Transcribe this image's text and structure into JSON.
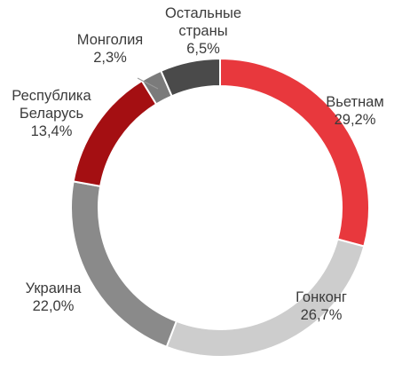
{
  "chart_data": {
    "type": "pie",
    "style": "donut",
    "start_angle_deg": 0,
    "direction": "clockwise",
    "slices": [
      {
        "label_lines": [
          "Вьетнам"
        ],
        "value": 29.2,
        "value_text": "29,2%",
        "color": "#e8383d",
        "label_side": "right"
      },
      {
        "label_lines": [
          "Гонконг"
        ],
        "value": 26.7,
        "value_text": "26,7%",
        "color": "#cdcdcd",
        "label_side": "center"
      },
      {
        "label_lines": [
          "Украина"
        ],
        "value": 22.0,
        "value_text": "22,0%",
        "color": "#8a8a8a",
        "label_side": "center"
      },
      {
        "label_lines": [
          "Республика",
          "Беларусь"
        ],
        "value": 13.4,
        "value_text": "13,4%",
        "color": "#a40f12",
        "label_side": "center"
      },
      {
        "label_lines": [
          "Монголия"
        ],
        "value": 2.3,
        "value_text": "2,3%",
        "color": "#7b7b7b",
        "label_side": "center"
      },
      {
        "label_lines": [
          "Остальные",
          "страны"
        ],
        "value": 6.5,
        "value_text": "6,5%",
        "color": "#4a4a4a",
        "label_side": "center"
      }
    ]
  }
}
